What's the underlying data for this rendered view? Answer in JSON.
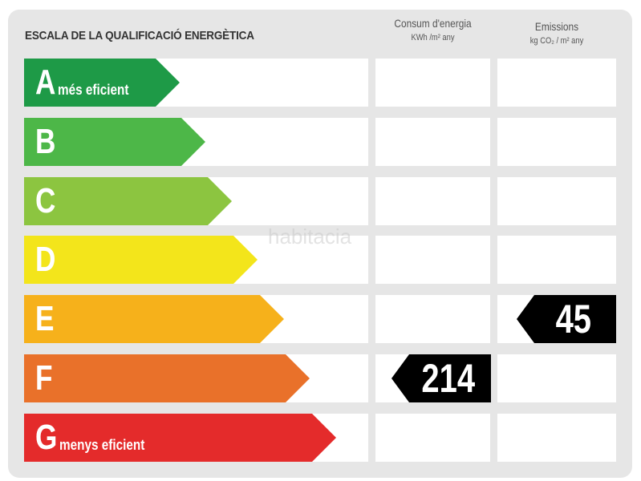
{
  "title": "ESCALA DE LA QUALIFICACIÓ ENERGÈTICA",
  "columns": {
    "energy": {
      "label": "Consum d'energia",
      "unit": "KWh /m² any"
    },
    "emissions": {
      "label": "Emissions",
      "unit": "kg CO₂ / m² any"
    }
  },
  "ratings": [
    {
      "letter": "A",
      "note": "més eficient",
      "color": "#1e9a47"
    },
    {
      "letter": "B",
      "note": "",
      "color": "#4db748"
    },
    {
      "letter": "C",
      "note": "",
      "color": "#8cc540"
    },
    {
      "letter": "D",
      "note": "",
      "color": "#f3e51b"
    },
    {
      "letter": "E",
      "note": "",
      "color": "#f6b11b"
    },
    {
      "letter": "F",
      "note": "",
      "color": "#e9712a"
    },
    {
      "letter": "G",
      "note": "menys eficient",
      "color": "#e42b2b"
    }
  ],
  "energy_value": {
    "rating": "F",
    "value": "214"
  },
  "emissions_value": {
    "rating": "E",
    "value": "45"
  },
  "watermark": "habitacia"
}
